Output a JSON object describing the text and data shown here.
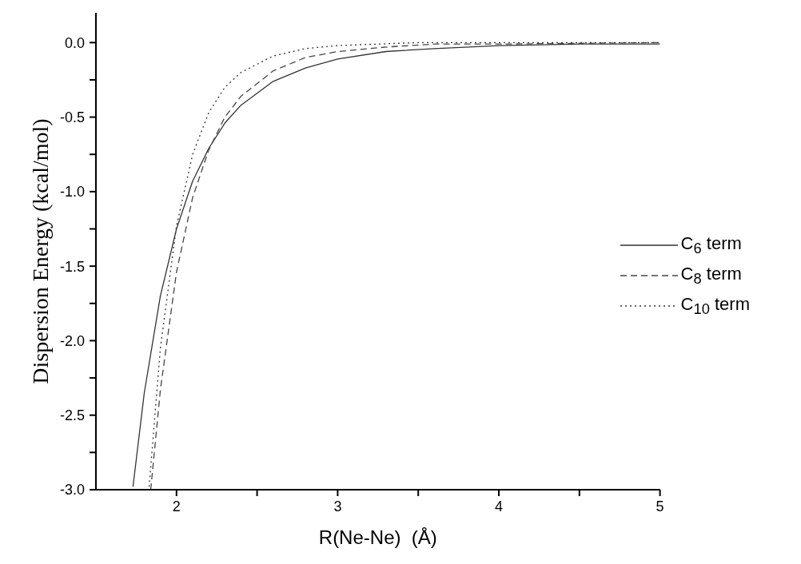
{
  "chart_data": {
    "type": "line",
    "xlabel": "R(Ne-Ne)  (Å)",
    "ylabel": "Dispersion Energy (kcal/mol)",
    "xlim": [
      1.5,
      5
    ],
    "ylim": [
      -3,
      0.2
    ],
    "xticks": [
      2,
      {
        "value": 2.5,
        "label": null
      },
      3,
      {
        "value": 3.5,
        "label": null
      },
      4,
      {
        "value": 4.5,
        "label": null
      },
      5
    ],
    "yticks": [
      {
        "value": -3,
        "label": "-3.0"
      },
      {
        "value": -2.75,
        "label": null
      },
      {
        "value": -2.5,
        "label": "-2.5"
      },
      {
        "value": -2.25,
        "label": null
      },
      {
        "value": -2,
        "label": "-2.0"
      },
      {
        "value": -1.75,
        "label": null
      },
      {
        "value": -1.5,
        "label": "-1.5"
      },
      {
        "value": -1.25,
        "label": null
      },
      {
        "value": -1,
        "label": "-1.0"
      },
      {
        "value": -0.75,
        "label": null
      },
      {
        "value": -0.5,
        "label": "-0.5"
      },
      {
        "value": -0.25,
        "label": null
      },
      {
        "value": 0,
        "label": "0.0"
      }
    ],
    "grid": false,
    "legend": "right",
    "marker": "none",
    "series": [
      {
        "name": "C$_{6}$ term",
        "color": "#333333",
        "line_style": "solid",
        "x": [
          1.73,
          1.8,
          1.9,
          2.0,
          2.1,
          2.2,
          2.3,
          2.4,
          2.6,
          2.8,
          3.0,
          3.3,
          3.6,
          4.0,
          4.5,
          5.0
        ],
        "values": [
          -2.98,
          -2.35,
          -1.7,
          -1.25,
          -0.93,
          -0.71,
          -0.54,
          -0.42,
          -0.26,
          -0.17,
          -0.11,
          -0.06,
          -0.04,
          -0.02,
          -0.01,
          -0.01
        ]
      },
      {
        "name": "C$_{8}$ term",
        "color": "#444444",
        "line_style": "dashed",
        "x": [
          1.84,
          1.9,
          2.0,
          2.1,
          2.2,
          2.3,
          2.4,
          2.6,
          2.8,
          3.0,
          3.3,
          3.6,
          4.0,
          5.0
        ],
        "values": [
          -3.0,
          -2.33,
          -1.54,
          -1.04,
          -0.72,
          -0.5,
          -0.36,
          -0.19,
          -0.1,
          -0.06,
          -0.03,
          -0.01,
          -0.01,
          0
        ]
      },
      {
        "name": "C$_{10}$ term",
        "color": "#333333",
        "line_style": "dotted",
        "x": [
          1.83,
          1.9,
          2.0,
          2.1,
          2.2,
          2.3,
          2.4,
          2.6,
          2.8,
          3.0,
          3.5,
          5.0
        ],
        "values": [
          -2.98,
          -2.05,
          -1.23,
          -0.75,
          -0.47,
          -0.3,
          -0.2,
          -0.09,
          -0.04,
          -0.02,
          0,
          0
        ]
      }
    ]
  }
}
